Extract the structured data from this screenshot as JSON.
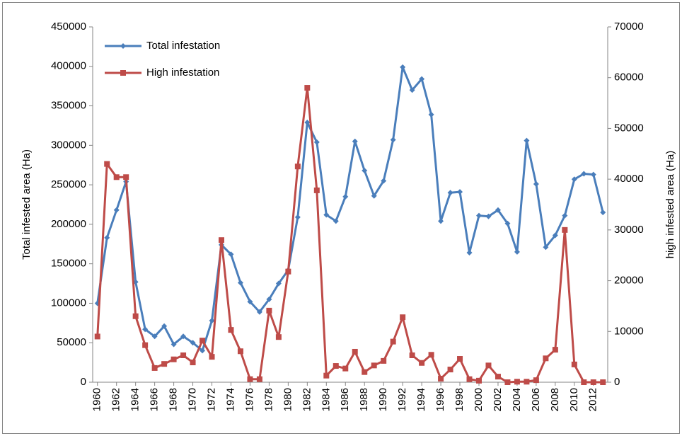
{
  "chart_data": {
    "type": "line",
    "x": [
      1960,
      1961,
      1962,
      1963,
      1964,
      1965,
      1966,
      1967,
      1968,
      1969,
      1970,
      1971,
      1972,
      1973,
      1974,
      1975,
      1976,
      1977,
      1978,
      1979,
      1980,
      1981,
      1982,
      1983,
      1984,
      1985,
      1986,
      1987,
      1988,
      1989,
      1990,
      1991,
      1992,
      1993,
      1994,
      1995,
      1996,
      1997,
      1998,
      1999,
      2000,
      2001,
      2002,
      2003,
      2004,
      2005,
      2006,
      2007,
      2008,
      2009,
      2010,
      2011,
      2012,
      2013
    ],
    "series": [
      {
        "name": "Total infestation",
        "color": "#4a7ebb",
        "marker": "diamond",
        "values": [
          100000,
          183000,
          218000,
          254000,
          127000,
          67000,
          58000,
          71000,
          48000,
          58000,
          50000,
          40000,
          78000,
          174000,
          162000,
          126000,
          102000,
          89000,
          105000,
          125000,
          142000,
          209000,
          329000,
          304000,
          212000,
          204000,
          235000,
          305000,
          268000,
          236000,
          255000,
          307000,
          399000,
          370000,
          384000,
          339000,
          204000,
          240000,
          241000,
          164000,
          211000,
          210000,
          218000,
          201000,
          165000,
          306000,
          251000,
          171000,
          186000,
          211000,
          257000,
          264000,
          263000,
          215000
        ]
      },
      {
        "name": "High infestation",
        "color": "#be4b48",
        "marker": "square",
        "axis": "y2",
        "values": [
          9000,
          43000,
          40400,
          40400,
          13000,
          7300,
          2800,
          3600,
          4500,
          5300,
          3900,
          8200,
          5000,
          28000,
          10300,
          6100,
          600,
          600,
          14100,
          8900,
          21800,
          42500,
          58000,
          37800,
          1300,
          3200,
          2700,
          6000,
          2000,
          3300,
          4200,
          8000,
          12800,
          5300,
          3800,
          5400,
          700,
          2500,
          4600,
          600,
          300,
          3300,
          1100,
          0,
          100,
          100,
          400,
          4700,
          6400,
          30000,
          3500,
          0,
          0,
          0
        ]
      }
    ],
    "xlim": [
      1959.5,
      2013.5
    ],
    "xticks": [
      1960,
      1962,
      1964,
      1966,
      1968,
      1970,
      1972,
      1974,
      1976,
      1978,
      1980,
      1982,
      1984,
      1986,
      1988,
      1990,
      1992,
      1994,
      1996,
      1998,
      2000,
      2002,
      2004,
      2006,
      2008,
      2010,
      2012
    ],
    "ylabel": "Total infested area (Ha)",
    "ylim": [
      0,
      450000
    ],
    "yticks": [
      0,
      50000,
      100000,
      150000,
      200000,
      250000,
      300000,
      350000,
      400000,
      450000
    ],
    "y2label": "high infested area (Ha)",
    "y2lim": [
      0,
      70000
    ],
    "y2ticks": [
      0,
      10000,
      20000,
      30000,
      40000,
      50000,
      60000,
      70000
    ],
    "grid": false,
    "legend": "upper left"
  }
}
